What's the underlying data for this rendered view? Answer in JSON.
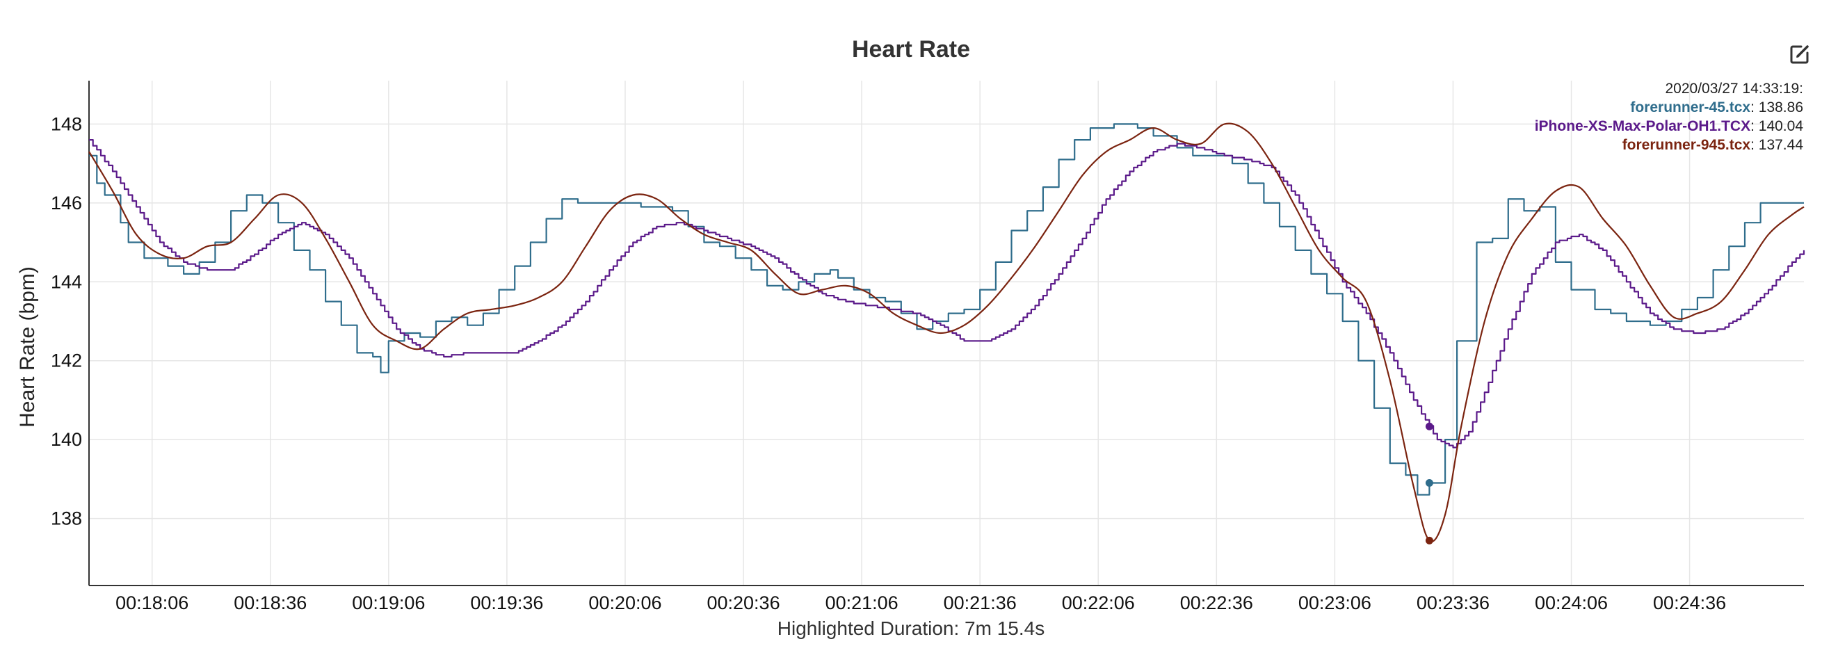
{
  "title": "Heart Rate",
  "chart_data": {
    "type": "line",
    "title": "Heart Rate",
    "xlabel": "Highlighted Duration: 7m 15.4s",
    "ylabel": "Heart Rate (bpm)",
    "xlim": [
      "00:17:50",
      "00:25:05"
    ],
    "ylim": [
      136.3,
      149.1
    ],
    "x_ticks": [
      "00:18:06",
      "00:18:36",
      "00:19:06",
      "00:19:36",
      "00:20:06",
      "00:20:36",
      "00:21:06",
      "00:21:36",
      "00:22:06",
      "00:22:36",
      "00:23:06",
      "00:23:36",
      "00:24:06",
      "00:24:36"
    ],
    "y_ticks": [
      138,
      140,
      142,
      144,
      146,
      148
    ],
    "grid": true,
    "legend": {
      "position": "top-right",
      "timestamp": "2020/03/27 14:33:19:",
      "entries": [
        {
          "name": "forerunner-45.tcx",
          "value": "138.86",
          "color": "#2f6d8c"
        },
        {
          "name": "iPhone-XS-Max-Polar-OH1.TCX",
          "value": "140.04",
          "color": "#5b1a8a"
        },
        {
          "name": "forerunner-945.tcx",
          "value": "137.44",
          "color": "#7b2410"
        }
      ]
    },
    "highlight_time": "00:23:30",
    "series": [
      {
        "name": "forerunner-45.tcx",
        "color": "#2f6d8c",
        "style": "step",
        "points": [
          [
            "00:17:50",
            147.2
          ],
          [
            "00:17:52",
            146.5
          ],
          [
            "00:17:54",
            146.2
          ],
          [
            "00:17:58",
            145.5
          ],
          [
            "00:18:00",
            145.0
          ],
          [
            "00:18:04",
            144.6
          ],
          [
            "00:18:10",
            144.4
          ],
          [
            "00:18:14",
            144.2
          ],
          [
            "00:18:18",
            144.5
          ],
          [
            "00:18:22",
            145.0
          ],
          [
            "00:18:26",
            145.8
          ],
          [
            "00:18:30",
            146.2
          ],
          [
            "00:18:34",
            146.0
          ],
          [
            "00:18:38",
            145.5
          ],
          [
            "00:18:42",
            144.8
          ],
          [
            "00:18:46",
            144.3
          ],
          [
            "00:18:50",
            143.5
          ],
          [
            "00:18:54",
            142.9
          ],
          [
            "00:18:58",
            142.2
          ],
          [
            "00:19:02",
            142.1
          ],
          [
            "00:19:04",
            141.7
          ],
          [
            "00:19:06",
            142.5
          ],
          [
            "00:19:10",
            142.7
          ],
          [
            "00:19:14",
            142.6
          ],
          [
            "00:19:18",
            143.0
          ],
          [
            "00:19:22",
            143.1
          ],
          [
            "00:19:26",
            142.9
          ],
          [
            "00:19:30",
            143.2
          ],
          [
            "00:19:34",
            143.8
          ],
          [
            "00:19:38",
            144.4
          ],
          [
            "00:19:42",
            145.0
          ],
          [
            "00:19:46",
            145.6
          ],
          [
            "00:19:50",
            146.1
          ],
          [
            "00:19:54",
            146.0
          ],
          [
            "00:20:02",
            146.0
          ],
          [
            "00:20:10",
            145.9
          ],
          [
            "00:20:18",
            145.8
          ],
          [
            "00:20:22",
            145.4
          ],
          [
            "00:20:26",
            145.0
          ],
          [
            "00:20:30",
            144.9
          ],
          [
            "00:20:34",
            144.6
          ],
          [
            "00:20:38",
            144.3
          ],
          [
            "00:20:42",
            143.9
          ],
          [
            "00:20:46",
            143.8
          ],
          [
            "00:20:50",
            144.0
          ],
          [
            "00:20:54",
            144.2
          ],
          [
            "00:20:58",
            144.3
          ],
          [
            "00:21:00",
            144.1
          ],
          [
            "00:21:04",
            143.8
          ],
          [
            "00:21:08",
            143.6
          ],
          [
            "00:21:12",
            143.5
          ],
          [
            "00:21:16",
            143.2
          ],
          [
            "00:21:20",
            142.8
          ],
          [
            "00:21:24",
            143.0
          ],
          [
            "00:21:28",
            143.2
          ],
          [
            "00:21:32",
            143.3
          ],
          [
            "00:21:36",
            143.8
          ],
          [
            "00:21:40",
            144.5
          ],
          [
            "00:21:44",
            145.3
          ],
          [
            "00:21:48",
            145.8
          ],
          [
            "00:21:52",
            146.4
          ],
          [
            "00:21:56",
            147.1
          ],
          [
            "00:22:00",
            147.6
          ],
          [
            "00:22:04",
            147.9
          ],
          [
            "00:22:10",
            148.0
          ],
          [
            "00:22:16",
            147.9
          ],
          [
            "00:22:20",
            147.7
          ],
          [
            "00:22:26",
            147.4
          ],
          [
            "00:22:30",
            147.2
          ],
          [
            "00:22:36",
            147.2
          ],
          [
            "00:22:40",
            147.0
          ],
          [
            "00:22:44",
            146.5
          ],
          [
            "00:22:48",
            146.0
          ],
          [
            "00:22:52",
            145.4
          ],
          [
            "00:22:56",
            144.8
          ],
          [
            "00:23:00",
            144.2
          ],
          [
            "00:23:04",
            143.7
          ],
          [
            "00:23:08",
            143.0
          ],
          [
            "00:23:12",
            142.0
          ],
          [
            "00:23:16",
            140.8
          ],
          [
            "00:23:20",
            139.4
          ],
          [
            "00:23:24",
            139.1
          ],
          [
            "00:23:27",
            138.6
          ],
          [
            "00:23:30",
            138.9
          ],
          [
            "00:23:34",
            140.0
          ],
          [
            "00:23:37",
            142.5
          ],
          [
            "00:23:42",
            145.0
          ],
          [
            "00:23:46",
            145.1
          ],
          [
            "00:23:50",
            146.1
          ],
          [
            "00:23:54",
            145.8
          ],
          [
            "00:23:58",
            145.9
          ],
          [
            "00:24:02",
            144.5
          ],
          [
            "00:24:06",
            143.8
          ],
          [
            "00:24:12",
            143.3
          ],
          [
            "00:24:16",
            143.2
          ],
          [
            "00:24:20",
            143.0
          ],
          [
            "00:24:26",
            142.9
          ],
          [
            "00:24:30",
            143.0
          ],
          [
            "00:24:34",
            143.3
          ],
          [
            "00:24:38",
            143.6
          ],
          [
            "00:24:42",
            144.3
          ],
          [
            "00:24:46",
            144.9
          ],
          [
            "00:24:50",
            145.5
          ],
          [
            "00:24:54",
            146.0
          ],
          [
            "00:25:05",
            146.0
          ]
        ]
      },
      {
        "name": "iPhone-XS-Max-Polar-OH1.TCX",
        "color": "#5b1a8a",
        "style": "fine-step",
        "points": [
          [
            "00:17:50",
            147.6
          ],
          [
            "00:17:56",
            146.8
          ],
          [
            "00:18:02",
            145.9
          ],
          [
            "00:18:08",
            145.0
          ],
          [
            "00:18:14",
            144.5
          ],
          [
            "00:18:20",
            144.3
          ],
          [
            "00:18:26",
            144.3
          ],
          [
            "00:18:32",
            144.7
          ],
          [
            "00:18:38",
            145.2
          ],
          [
            "00:18:44",
            145.5
          ],
          [
            "00:18:50",
            145.2
          ],
          [
            "00:18:56",
            144.6
          ],
          [
            "00:19:02",
            143.7
          ],
          [
            "00:19:08",
            142.8
          ],
          [
            "00:19:14",
            142.3
          ],
          [
            "00:19:20",
            142.1
          ],
          [
            "00:19:26",
            142.2
          ],
          [
            "00:19:32",
            142.2
          ],
          [
            "00:19:38",
            142.2
          ],
          [
            "00:19:44",
            142.5
          ],
          [
            "00:19:50",
            142.9
          ],
          [
            "00:19:56",
            143.5
          ],
          [
            "00:20:02",
            144.3
          ],
          [
            "00:20:08",
            145.0
          ],
          [
            "00:20:14",
            145.4
          ],
          [
            "00:20:20",
            145.5
          ],
          [
            "00:20:26",
            145.3
          ],
          [
            "00:20:32",
            145.1
          ],
          [
            "00:20:38",
            144.9
          ],
          [
            "00:20:44",
            144.6
          ],
          [
            "00:20:50",
            144.1
          ],
          [
            "00:20:56",
            143.7
          ],
          [
            "00:21:02",
            143.5
          ],
          [
            "00:21:08",
            143.4
          ],
          [
            "00:21:14",
            143.3
          ],
          [
            "00:21:20",
            143.2
          ],
          [
            "00:21:26",
            142.9
          ],
          [
            "00:21:32",
            142.5
          ],
          [
            "00:21:38",
            142.5
          ],
          [
            "00:21:44",
            142.8
          ],
          [
            "00:21:50",
            143.4
          ],
          [
            "00:21:56",
            144.2
          ],
          [
            "00:22:02",
            145.1
          ],
          [
            "00:22:08",
            146.1
          ],
          [
            "00:22:14",
            146.8
          ],
          [
            "00:22:20",
            147.3
          ],
          [
            "00:22:26",
            147.5
          ],
          [
            "00:22:32",
            147.4
          ],
          [
            "00:22:38",
            147.2
          ],
          [
            "00:22:44",
            147.1
          ],
          [
            "00:22:50",
            146.9
          ],
          [
            "00:22:56",
            146.2
          ],
          [
            "00:23:02",
            145.1
          ],
          [
            "00:23:08",
            144.0
          ],
          [
            "00:23:14",
            143.2
          ],
          [
            "00:23:20",
            142.2
          ],
          [
            "00:23:26",
            141.0
          ],
          [
            "00:23:32",
            140.0
          ],
          [
            "00:23:36",
            139.8
          ],
          [
            "00:23:40",
            140.2
          ],
          [
            "00:23:44",
            141.2
          ],
          [
            "00:23:50",
            142.8
          ],
          [
            "00:23:56",
            144.2
          ],
          [
            "00:24:02",
            145.0
          ],
          [
            "00:24:08",
            145.2
          ],
          [
            "00:24:14",
            144.8
          ],
          [
            "00:24:20",
            144.0
          ],
          [
            "00:24:26",
            143.2
          ],
          [
            "00:24:32",
            142.8
          ],
          [
            "00:24:38",
            142.7
          ],
          [
            "00:24:44",
            142.8
          ],
          [
            "00:24:50",
            143.2
          ],
          [
            "00:24:56",
            143.8
          ],
          [
            "00:25:02",
            144.5
          ],
          [
            "00:25:05",
            144.8
          ]
        ]
      },
      {
        "name": "forerunner-945.tcx",
        "color": "#7b2410",
        "style": "smooth",
        "points": [
          [
            "00:17:50",
            147.3
          ],
          [
            "00:17:56",
            146.3
          ],
          [
            "00:18:02",
            145.2
          ],
          [
            "00:18:08",
            144.7
          ],
          [
            "00:18:14",
            144.6
          ],
          [
            "00:18:20",
            144.9
          ],
          [
            "00:18:26",
            145.0
          ],
          [
            "00:18:32",
            145.6
          ],
          [
            "00:18:38",
            146.2
          ],
          [
            "00:18:44",
            146.0
          ],
          [
            "00:18:50",
            145.1
          ],
          [
            "00:18:56",
            144.0
          ],
          [
            "00:19:02",
            142.9
          ],
          [
            "00:19:08",
            142.5
          ],
          [
            "00:19:14",
            142.3
          ],
          [
            "00:19:20",
            142.8
          ],
          [
            "00:19:26",
            143.2
          ],
          [
            "00:19:32",
            143.3
          ],
          [
            "00:19:38",
            143.4
          ],
          [
            "00:19:44",
            143.6
          ],
          [
            "00:19:50",
            144.0
          ],
          [
            "00:19:56",
            144.9
          ],
          [
            "00:20:02",
            145.8
          ],
          [
            "00:20:08",
            146.2
          ],
          [
            "00:20:14",
            146.1
          ],
          [
            "00:20:20",
            145.6
          ],
          [
            "00:20:26",
            145.2
          ],
          [
            "00:20:32",
            145.0
          ],
          [
            "00:20:38",
            144.8
          ],
          [
            "00:20:44",
            144.2
          ],
          [
            "00:20:50",
            143.7
          ],
          [
            "00:20:56",
            143.8
          ],
          [
            "00:21:02",
            143.9
          ],
          [
            "00:21:08",
            143.7
          ],
          [
            "00:21:14",
            143.2
          ],
          [
            "00:21:20",
            142.9
          ],
          [
            "00:21:26",
            142.7
          ],
          [
            "00:21:32",
            142.9
          ],
          [
            "00:21:38",
            143.4
          ],
          [
            "00:21:44",
            144.1
          ],
          [
            "00:21:50",
            144.9
          ],
          [
            "00:21:56",
            145.8
          ],
          [
            "00:22:02",
            146.7
          ],
          [
            "00:22:08",
            147.3
          ],
          [
            "00:22:14",
            147.6
          ],
          [
            "00:22:20",
            147.9
          ],
          [
            "00:22:26",
            147.6
          ],
          [
            "00:22:32",
            147.5
          ],
          [
            "00:22:38",
            148.0
          ],
          [
            "00:22:44",
            147.8
          ],
          [
            "00:22:50",
            147.0
          ],
          [
            "00:22:56",
            145.9
          ],
          [
            "00:23:02",
            144.8
          ],
          [
            "00:23:08",
            144.1
          ],
          [
            "00:23:14",
            143.5
          ],
          [
            "00:23:20",
            141.5
          ],
          [
            "00:23:26",
            138.8
          ],
          [
            "00:23:30",
            137.44
          ],
          [
            "00:23:34",
            138.1
          ],
          [
            "00:23:38",
            140.3
          ],
          [
            "00:23:44",
            143.0
          ],
          [
            "00:23:50",
            144.7
          ],
          [
            "00:23:56",
            145.6
          ],
          [
            "00:24:02",
            146.3
          ],
          [
            "00:24:08",
            146.4
          ],
          [
            "00:24:14",
            145.6
          ],
          [
            "00:24:20",
            144.9
          ],
          [
            "00:24:26",
            143.9
          ],
          [
            "00:24:32",
            143.1
          ],
          [
            "00:24:38",
            143.2
          ],
          [
            "00:24:44",
            143.5
          ],
          [
            "00:24:50",
            144.3
          ],
          [
            "00:24:56",
            145.2
          ],
          [
            "00:25:02",
            145.7
          ],
          [
            "00:25:05",
            145.9
          ]
        ]
      }
    ]
  }
}
